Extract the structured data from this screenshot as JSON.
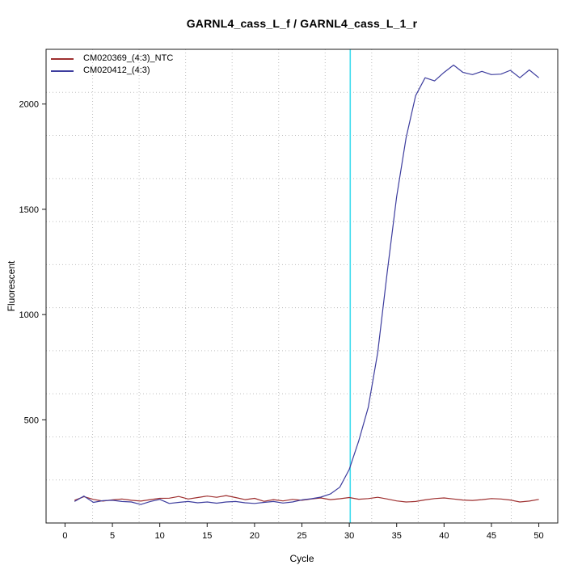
{
  "figure": {
    "background": "#ffffff",
    "axis_color": "#000000"
  },
  "chart_data": {
    "type": "line",
    "title": "GARNL4_cass_L_f / GARNL4_cass_L_1_r",
    "xlabel": "Cycle",
    "ylabel": "Fluorescent",
    "x_ticks": [
      0,
      5,
      10,
      15,
      20,
      25,
      30,
      35,
      40,
      45,
      50
    ],
    "y_ticks": [
      500,
      1000,
      1500,
      2000
    ],
    "x_range": [
      -2,
      52
    ],
    "y_range": [
      10,
      2260
    ],
    "grid": {
      "divisions": 11,
      "color": "#bfbfbf",
      "style": "dotted"
    },
    "threshold_line": {
      "x": 30.1,
      "color": "#3fdcee"
    },
    "legend_position": "top-left",
    "x_start": 1,
    "series": [
      {
        "name": "CM020369_(4:3)_NTC",
        "color": "#9e2f2f",
        "values": [
          118,
          135,
          122,
          114,
          120,
          124,
          118,
          114,
          121,
          127,
          128,
          136,
          124,
          131,
          138,
          132,
          140,
          131,
          121,
          127,
          113,
          121,
          115,
          122,
          118,
          124,
          129,
          121,
          125,
          131,
          123,
          126,
          132,
          124,
          115,
          110,
          112,
          120,
          126,
          129,
          124,
          119,
          117,
          121,
          126,
          124,
          119,
          110,
          114,
          122
        ]
      },
      {
        "name": "CM020412_(4:3)",
        "color": "#3d3d9e",
        "values": [
          112,
          138,
          108,
          116,
          118,
          112,
          110,
          98,
          112,
          122,
          103,
          108,
          112,
          106,
          110,
          104,
          110,
          112,
          106,
          103,
          108,
          112,
          105,
          110,
          120,
          125,
          133,
          148,
          180,
          265,
          400,
          560,
          820,
          1200,
          1560,
          1840,
          2040,
          2125,
          2110,
          2150,
          2185,
          2150,
          2140,
          2155,
          2140,
          2142,
          2160,
          2125,
          2162,
          2125
        ]
      }
    ]
  }
}
